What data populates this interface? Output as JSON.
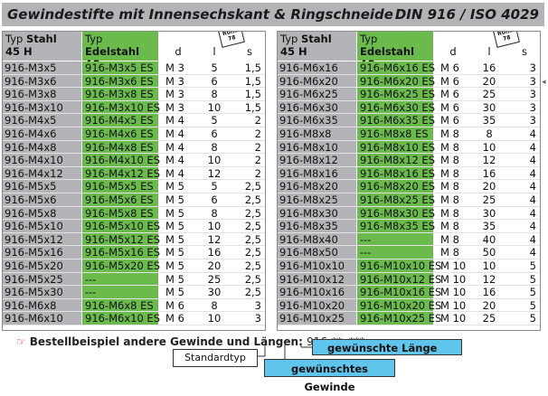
{
  "title": {
    "left": "Gewindestifte mit Innensechskant & Ringschneide",
    "right": "DIN 916 / ISO 4029"
  },
  "header": {
    "col1_a": "Typ ",
    "col1_a_bold": "Stahl",
    "col1_b": "45 H",
    "col2_a": "Typ ",
    "col2_a_bold": "Edelstahl",
    "col2_b": "A2",
    "col_d": "d",
    "col_l": "l",
    "col_s": "s",
    "tag": "Rund 78"
  },
  "left_rows": [
    [
      "916-M3x5",
      "916-M3x5 ES",
      "M 3",
      "5",
      "1,5"
    ],
    [
      "916-M3x6",
      "916-M3x6 ES",
      "M 3",
      "6",
      "1,5"
    ],
    [
      "916-M3x8",
      "916-M3x8 ES",
      "M 3",
      "8",
      "1,5"
    ],
    [
      "916-M3x10",
      "916-M3x10 ES",
      "M 3",
      "10",
      "1,5"
    ],
    [
      "916-M4x5",
      "916-M4x5 ES",
      "M 4",
      "5",
      "2"
    ],
    [
      "916-M4x6",
      "916-M4x6 ES",
      "M 4",
      "6",
      "2"
    ],
    [
      "916-M4x8",
      "916-M4x8 ES",
      "M 4",
      "8",
      "2"
    ],
    [
      "916-M4x10",
      "916-M4x10 ES",
      "M 4",
      "10",
      "2"
    ],
    [
      "916-M4x12",
      "916-M4x12 ES",
      "M 4",
      "12",
      "2"
    ],
    [
      "916-M5x5",
      "916-M5x5 ES",
      "M 5",
      "5",
      "2,5"
    ],
    [
      "916-M5x6",
      "916-M5x6 ES",
      "M 5",
      "6",
      "2,5"
    ],
    [
      "916-M5x8",
      "916-M5x8 ES",
      "M 5",
      "8",
      "2,5"
    ],
    [
      "916-M5x10",
      "916-M5x10 ES",
      "M 5",
      "10",
      "2,5"
    ],
    [
      "916-M5x12",
      "916-M5x12 ES",
      "M 5",
      "12",
      "2,5"
    ],
    [
      "916-M5x16",
      "916-M5x16 ES",
      "M 5",
      "16",
      "2,5"
    ],
    [
      "916-M5x20",
      "916-M5x20 ES",
      "M 5",
      "20",
      "2,5"
    ],
    [
      "916-M5x25",
      "---",
      "M 5",
      "25",
      "2,5"
    ],
    [
      "916-M5x30",
      "---",
      "M 5",
      "30",
      "2,5"
    ],
    [
      "916-M6x8",
      "916-M6x8 ES",
      "M 6",
      "8",
      "3"
    ],
    [
      "916-M6x10",
      "916-M6x10 ES",
      "M 6",
      "10",
      "3"
    ]
  ],
  "right_rows": [
    [
      "916-M6x16",
      "916-M6x16 ES",
      "M 6",
      "16",
      "3"
    ],
    [
      "916-M6x20",
      "916-M6x20 ES",
      "M 6",
      "20",
      "3"
    ],
    [
      "916-M6x25",
      "916-M6x25 ES",
      "M 6",
      "25",
      "3"
    ],
    [
      "916-M6x30",
      "916-M6x30 ES",
      "M 6",
      "30",
      "3"
    ],
    [
      "916-M6x35",
      "916-M6x35 ES",
      "M 6",
      "35",
      "3"
    ],
    [
      "916-M8x8",
      "916-M8x8 ES",
      "M 8",
      "8",
      "4"
    ],
    [
      "916-M8x10",
      "916-M8x10 ES",
      "M 8",
      "10",
      "4"
    ],
    [
      "916-M8x12",
      "916-M8x12 ES",
      "M 8",
      "12",
      "4"
    ],
    [
      "916-M8x16",
      "916-M8x16 ES",
      "M 8",
      "16",
      "4"
    ],
    [
      "916-M8x20",
      "916-M8x20 ES",
      "M 8",
      "20",
      "4"
    ],
    [
      "916-M8x25",
      "916-M8x25 ES",
      "M 8",
      "25",
      "4"
    ],
    [
      "916-M8x30",
      "916-M8x30 ES",
      "M 8",
      "30",
      "4"
    ],
    [
      "916-M8x35",
      "916-M8x35 ES",
      "M 8",
      "35",
      "4"
    ],
    [
      "916-M8x40",
      "---",
      "M 8",
      "40",
      "4"
    ],
    [
      "916-M8x50",
      "---",
      "M 8",
      "50",
      "4"
    ],
    [
      "916-M10x10",
      "916-M10x10 ES",
      "M 10",
      "10",
      "5"
    ],
    [
      "916-M10x12",
      "916-M10x12 ES",
      "M 10",
      "12",
      "5"
    ],
    [
      "916-M10x16",
      "916-M10x16 ES",
      "M 10",
      "16",
      "5"
    ],
    [
      "916-M10x20",
      "916-M10x20 ES",
      "M 10",
      "20",
      "5"
    ],
    [
      "916-M10x25",
      "916-M10x25 ES",
      "M 10",
      "25",
      "5"
    ]
  ],
  "footer": {
    "label": "Bestellbeispiel andere Gewinde und Längen:",
    "code": "916-**x***",
    "standard": "Standardtyp",
    "length": "gewünschte Länge",
    "thread": "gewünschtes Gewinde"
  },
  "colors": {
    "grey": "#b3b4b7",
    "green": "#6abb4c",
    "blue": "#60c5ec",
    "arrow": "#d02020"
  },
  "icons": {
    "pointer": "pointing-hand-icon"
  }
}
